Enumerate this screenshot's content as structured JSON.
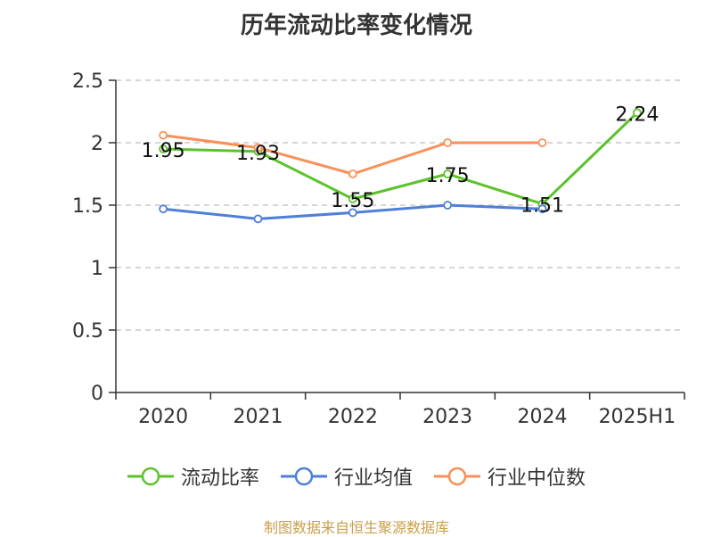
{
  "title": "历年流动比率变化情况",
  "source_note": "制图数据来自恒生聚源数据库",
  "chart_data": {
    "type": "line",
    "categories": [
      "2020",
      "2021",
      "2022",
      "2023",
      "2024",
      "2025H1"
    ],
    "ylim": [
      0,
      2.5
    ],
    "yticks": [
      "0",
      "0.5",
      "1",
      "1.5",
      "2",
      "2.5"
    ],
    "ytick_values": [
      0,
      0.5,
      1,
      1.5,
      2,
      2.5
    ],
    "grid": true,
    "legend_position": "bottom",
    "series": [
      {
        "name": "流动比率",
        "color": "#5cc22c",
        "values": [
          1.95,
          1.93,
          1.55,
          1.75,
          1.51,
          2.24
        ],
        "data_labels": [
          "1.95",
          "1.93",
          "1.55",
          "1.75",
          "1.51",
          "2.24"
        ]
      },
      {
        "name": "行业均值",
        "color": "#4e7fd9",
        "values": [
          1.47,
          1.39,
          1.44,
          1.5,
          1.47,
          null
        ]
      },
      {
        "name": "行业中位数",
        "color": "#f89058",
        "values": [
          2.06,
          1.96,
          1.75,
          2.0,
          2.0,
          null
        ]
      }
    ]
  }
}
